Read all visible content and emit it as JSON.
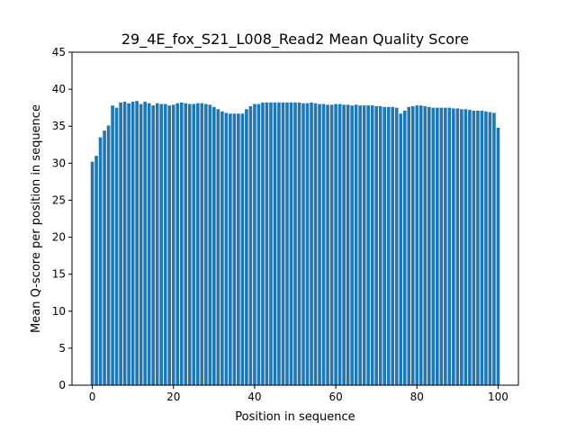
{
  "chart_data": {
    "type": "bar",
    "title": "29_4E_fox_S21_L008_Read2 Mean Quality Score",
    "xlabel": "Position in sequence",
    "ylabel": "Mean Q-score per position in sequence",
    "xlim": [
      -5,
      105
    ],
    "ylim": [
      0,
      45
    ],
    "x_ticks": [
      0,
      20,
      40,
      60,
      80,
      100
    ],
    "y_ticks": [
      0,
      5,
      10,
      15,
      20,
      25,
      30,
      35,
      40,
      45
    ],
    "grid": false,
    "bar_color": "#1f77b4",
    "x": [
      0,
      1,
      2,
      3,
      4,
      5,
      6,
      7,
      8,
      9,
      10,
      11,
      12,
      13,
      14,
      15,
      16,
      17,
      18,
      19,
      20,
      21,
      22,
      23,
      24,
      25,
      26,
      27,
      28,
      29,
      30,
      31,
      32,
      33,
      34,
      35,
      36,
      37,
      38,
      39,
      40,
      41,
      42,
      43,
      44,
      45,
      46,
      47,
      48,
      49,
      50,
      51,
      52,
      53,
      54,
      55,
      56,
      57,
      58,
      59,
      60,
      61,
      62,
      63,
      64,
      65,
      66,
      67,
      68,
      69,
      70,
      71,
      72,
      73,
      74,
      75,
      76,
      77,
      78,
      79,
      80,
      81,
      82,
      83,
      84,
      85,
      86,
      87,
      88,
      89,
      90,
      91,
      92,
      93,
      94,
      95,
      96,
      97,
      98,
      99,
      100
    ],
    "values": [
      30.2,
      31.0,
      33.5,
      34.4,
      35.1,
      37.8,
      37.5,
      38.2,
      38.3,
      38.1,
      38.3,
      38.4,
      38.0,
      38.3,
      38.1,
      37.8,
      38.1,
      38.0,
      38.0,
      37.8,
      37.9,
      38.1,
      38.2,
      38.1,
      38.0,
      38.0,
      38.1,
      38.1,
      38.0,
      37.9,
      37.6,
      37.3,
      37.0,
      36.8,
      36.7,
      36.7,
      36.7,
      36.7,
      37.3,
      37.7,
      38.0,
      38.0,
      38.2,
      38.2,
      38.2,
      38.2,
      38.2,
      38.2,
      38.2,
      38.2,
      38.2,
      38.2,
      38.1,
      38.1,
      38.2,
      38.1,
      38.0,
      38.0,
      37.9,
      37.9,
      38.0,
      38.0,
      37.9,
      37.9,
      37.8,
      37.9,
      37.8,
      37.8,
      37.8,
      37.8,
      37.7,
      37.7,
      37.6,
      37.6,
      37.6,
      37.5,
      36.7,
      37.1,
      37.6,
      37.7,
      37.8,
      37.8,
      37.7,
      37.6,
      37.5,
      37.5,
      37.5,
      37.5,
      37.5,
      37.4,
      37.4,
      37.3,
      37.3,
      37.2,
      37.1,
      37.1,
      37.1,
      37.0,
      36.9,
      36.8,
      34.8
    ]
  }
}
